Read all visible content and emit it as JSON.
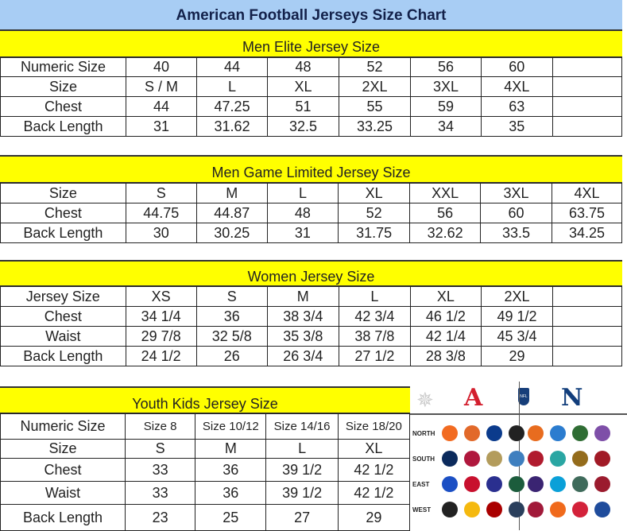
{
  "title": "American Football Jerseys Size Chart",
  "tables": [
    {
      "heading": "Men Elite Jersey Size",
      "rows": [
        [
          "Numeric Size",
          "40",
          "44",
          "48",
          "52",
          "56",
          "60",
          ""
        ],
        [
          "Size",
          "S / M",
          "L",
          "XL",
          "2XL",
          "3XL",
          "4XL",
          ""
        ],
        [
          "Chest",
          "44",
          "47.25",
          "51",
          "55",
          "59",
          "63",
          ""
        ],
        [
          "Back Length",
          "31",
          "31.62",
          "32.5",
          "33.25",
          "34",
          "35",
          ""
        ]
      ]
    },
    {
      "heading": "Men Game Limited Jersey Size",
      "rows": [
        [
          "Size",
          "S",
          "M",
          "L",
          "XL",
          "XXL",
          "3XL",
          "4XL"
        ],
        [
          "Chest",
          "44.75",
          "44.87",
          "48",
          "52",
          "56",
          "60",
          "63.75"
        ],
        [
          "Back Length",
          "30",
          "30.25",
          "31",
          "31.75",
          "32.62",
          "33.5",
          "34.25"
        ]
      ]
    },
    {
      "heading": "Women Jersey Size",
      "rows": [
        [
          "Jersey Size",
          "XS",
          "S",
          "M",
          "L",
          "XL",
          "2XL",
          ""
        ],
        [
          "Chest",
          "34 1/4",
          "36",
          "38 3/4",
          "42 3/4",
          "46 1/2",
          "49 1/2",
          ""
        ],
        [
          "Waist",
          "29 7/8",
          "32 5/8",
          "35 3/8",
          "38 7/8",
          "42 1/4",
          "45 3/4",
          ""
        ],
        [
          "Back Length",
          "24 1/2",
          "26",
          "26 3/4",
          "27 1/2",
          "28 3/8",
          "29",
          ""
        ]
      ]
    },
    {
      "heading": "Youth Kids Jersey Size",
      "rows": [
        [
          "Numeric Size",
          "Size 8",
          "Size 10/12",
          "Size 14/16",
          "Size 18/20"
        ],
        [
          "Size",
          "S",
          "M",
          "L",
          "XL"
        ],
        [
          "Chest",
          "33",
          "36",
          "39 1/2",
          "42 1/2"
        ],
        [
          "Waist",
          "33",
          "36",
          "39 1/2",
          "42 1/2"
        ],
        [
          "Back Length",
          "23",
          "25",
          "27",
          "29"
        ]
      ]
    }
  ],
  "logos": {
    "afc": "A",
    "nfc": "N",
    "nfl": "NFL",
    "divisions": [
      "NORTH",
      "SOUTH",
      "EAST",
      "WEST"
    ],
    "afc_colors": [
      [
        "#f26b21",
        "#e2692a",
        "#0b3b8c",
        "#222"
      ],
      [
        "#0b2a5c",
        "#b0183d",
        "#b39c5c",
        "#3f7fbf"
      ],
      [
        "#1b4fc4",
        "#c8102e",
        "#2a2f8f",
        "#1c5c3c"
      ],
      [
        "#222",
        "#f5b90f",
        "#aa0000",
        "#2a3f5c"
      ]
    ],
    "nfc_colors": [
      [
        "#e86c1f",
        "#2b7ccf",
        "#2f6d34",
        "#7e4fa8"
      ],
      [
        "#b01b2e",
        "#2aa6a3",
        "#946c1c",
        "#a11a26"
      ],
      [
        "#3a2472",
        "#0aa0d8",
        "#3f6b5b",
        "#9b1b2e"
      ],
      [
        "#a11a3a",
        "#f06a1c",
        "#d3223a",
        "#1f4c9c"
      ]
    ],
    "colors": {
      "afc": "#d31f2e",
      "nfc": "#123e7c"
    }
  }
}
